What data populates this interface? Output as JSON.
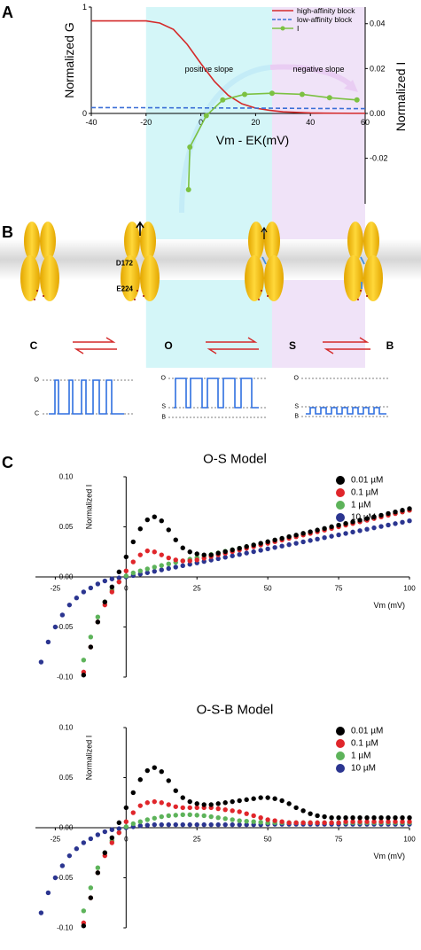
{
  "panel_labels": [
    "A",
    "B",
    "C"
  ],
  "panel_b": {
    "residues": [
      "D172",
      "E224"
    ],
    "states": [
      "C",
      "O",
      "S",
      "B"
    ],
    "traces": [
      {
        "levels": [
          "O",
          "C"
        ]
      },
      {
        "levels": [
          "O",
          "S",
          "B"
        ]
      },
      {
        "levels": [
          "O",
          "S",
          "B"
        ]
      }
    ]
  },
  "chart_data": [
    {
      "type": "line",
      "xlabel": "Vm - EK(mV)",
      "ylabel": "Normalized G",
      "y2label": "Normalized I",
      "xlim": [
        -40,
        60
      ],
      "xticks": [
        -40,
        -20,
        0,
        20,
        40,
        60
      ],
      "ylim": [
        -0.85,
        1
      ],
      "yticks": [
        0,
        1
      ],
      "y2lim": [
        -0.0403,
        0.0474
      ],
      "y2ticks": [
        0.04,
        0.02,
        {
          "value": 0,
          "label": "0.00"
        },
        -0.02
      ],
      "legend": "upper right",
      "regions": [
        {
          "label": "positive slope",
          "from": -20,
          "to": 26,
          "color": "#c9f4f6",
          "text_color": "#86c3e6"
        },
        {
          "label": "negative slope",
          "from": 26,
          "to": 60,
          "color": "#ecdcf6",
          "text_color": "#d39be6"
        }
      ],
      "series": [
        {
          "name": "high-affinity block",
          "color": "#d42a2a",
          "style": "solid",
          "x": [
            -40,
            -35,
            -30,
            -25,
            -20,
            -15,
            -10,
            -5,
            0,
            5,
            10,
            15,
            20,
            25,
            30,
            35,
            40,
            45,
            50,
            55,
            60
          ],
          "values": [
            0.87,
            0.87,
            0.87,
            0.87,
            0.87,
            0.85,
            0.79,
            0.65,
            0.47,
            0.3,
            0.17,
            0.09,
            0.05,
            0.03,
            0.015,
            0.01,
            0.005,
            0.003,
            0.002,
            0.001,
            0.001
          ]
        },
        {
          "name": "low-affinity block",
          "color": "#3b6fd6",
          "style": "dashed",
          "x": [
            -40,
            -20,
            0,
            20,
            40,
            60
          ],
          "values": [
            0.055,
            0.054,
            0.052,
            0.05,
            0.047,
            0.045
          ]
        },
        {
          "name": "I",
          "color": "#7cc142",
          "style": "solid",
          "marker": "circle",
          "axis": "y2",
          "x": [
            -4.5,
            -4,
            2,
            8,
            16,
            26,
            37,
            47,
            57
          ],
          "values": [
            -0.034,
            -0.015,
            -0.001,
            0.006,
            0.0085,
            0.009,
            0.0085,
            0.007,
            0.006
          ]
        }
      ]
    },
    {
      "type": "scatter",
      "title": "O-S Model",
      "xlabel": "Vm (mV)",
      "ylabel": "Normalized I",
      "xlim": [
        -32,
        100
      ],
      "xticks": [
        -25,
        0,
        25,
        50,
        75,
        100
      ],
      "ylim": [
        -0.1,
        0.1
      ],
      "yticks": [
        {
          "value": 0.1,
          "label": "0.10"
        },
        0.05,
        {
          "value": 0,
          "label": "0.00"
        },
        -0.05,
        {
          "value": -0.1,
          "label": "-0.10"
        }
      ],
      "legend": "upper right",
      "x": [
        -30,
        -27.5,
        -25,
        -22.5,
        -20,
        -17.5,
        -15,
        -12.5,
        -10,
        -7.5,
        -5,
        -2.5,
        0,
        2.5,
        5,
        7.5,
        10,
        12.5,
        15,
        17.5,
        20,
        22.5,
        25,
        27.5,
        30,
        32.5,
        35,
        37.5,
        40,
        42.5,
        45,
        47.5,
        50,
        52.5,
        55,
        57.5,
        60,
        62.5,
        65,
        67.5,
        70,
        72.5,
        75,
        77.5,
        80,
        82.5,
        85,
        87.5,
        90,
        92.5,
        95,
        97.5,
        100
      ],
      "series": [
        {
          "name": "0.01 µM",
          "color": "#000000",
          "values": [
            null,
            null,
            null,
            null,
            null,
            null,
            -0.098,
            -0.07,
            -0.045,
            -0.025,
            -0.01,
            0.005,
            0.02,
            0.035,
            0.048,
            0.057,
            0.06,
            0.056,
            0.047,
            0.037,
            0.029,
            0.025,
            0.023,
            0.022,
            0.022,
            0.0237,
            0.0253,
            0.027,
            0.0286,
            0.0303,
            0.0319,
            0.0336,
            0.0352,
            0.0369,
            0.0385,
            0.0402,
            0.0418,
            0.0435,
            0.0451,
            0.0468,
            0.0484,
            0.0501,
            0.0517,
            0.0534,
            0.055,
            0.0567,
            0.0583,
            0.06,
            0.0616,
            0.0633,
            0.0649,
            0.0666,
            0.0682
          ]
        },
        {
          "name": "0.1 µM",
          "color": "#e0262b",
          "values": [
            null,
            null,
            null,
            null,
            null,
            null,
            -0.095,
            -0.07,
            -0.045,
            -0.028,
            -0.015,
            -0.005,
            0.006,
            0.015,
            0.022,
            0.026,
            0.025,
            0.022,
            0.019,
            0.017,
            0.016,
            0.016,
            0.017,
            0.0187,
            0.0203,
            0.022,
            0.0236,
            0.0253,
            0.0269,
            0.0286,
            0.0302,
            0.0319,
            0.0335,
            0.0352,
            0.0368,
            0.0385,
            0.0401,
            0.0418,
            0.0434,
            0.0451,
            0.0467,
            0.0484,
            0.05,
            0.0517,
            0.0533,
            0.055,
            0.0566,
            0.0583,
            0.0599,
            0.0616,
            0.0632,
            0.0649,
            0.0665
          ]
        },
        {
          "name": "1 µM",
          "color": "#5db35a",
          "values": [
            null,
            null,
            null,
            null,
            null,
            null,
            -0.083,
            -0.06,
            -0.04,
            -0.025,
            -0.013,
            -0.005,
            0.001,
            0.004,
            0.006,
            0.008,
            0.0098,
            0.0114,
            0.013,
            0.0145,
            0.0161,
            0.0177,
            0.0193,
            0.0208,
            0.0224,
            0.024,
            0.0256,
            0.0271,
            0.0287,
            0.0303,
            0.0319,
            0.0334,
            0.035,
            0.0366,
            0.0382,
            0.0397,
            0.0413,
            0.0429,
            0.0445,
            0.046,
            0.0476,
            0.0492,
            0.0508,
            0.0523,
            0.0539,
            0.0555,
            0.0571,
            0.0586,
            0.0602,
            0.0618,
            0.0634,
            0.0649,
            0.0665
          ]
        },
        {
          "name": "10 µM",
          "color": "#2b3590",
          "values": [
            -0.085,
            -0.065,
            -0.05,
            -0.038,
            -0.028,
            -0.021,
            -0.015,
            -0.011,
            -0.007,
            -0.004,
            -0.002,
            -0.001,
            0,
            0.0014,
            0.0028,
            0.0042,
            0.0056,
            0.007,
            0.0084,
            0.0098,
            0.0112,
            0.0126,
            0.014,
            0.0154,
            0.0168,
            0.0182,
            0.0196,
            0.021,
            0.0224,
            0.0238,
            0.0252,
            0.0266,
            0.028,
            0.0294,
            0.0308,
            0.0322,
            0.0336,
            0.035,
            0.0364,
            0.0378,
            0.0392,
            0.0406,
            0.042,
            0.0434,
            0.0448,
            0.0462,
            0.0476,
            0.049,
            0.0504,
            0.0518,
            0.0532,
            0.0546,
            0.056
          ]
        }
      ]
    },
    {
      "type": "scatter",
      "title": "O-S-B Model",
      "xlabel": "Vm (mV)",
      "ylabel": "Normalized I",
      "xlim": [
        -32,
        100
      ],
      "xticks": [
        -25,
        0,
        25,
        50,
        75,
        100
      ],
      "ylim": [
        -0.1,
        0.1
      ],
      "yticks": [
        {
          "value": 0.1,
          "label": "0.10"
        },
        0.05,
        {
          "value": 0,
          "label": "0.00"
        },
        -0.05,
        {
          "value": -0.1,
          "label": "-0.10"
        }
      ],
      "legend": "upper right",
      "x": [
        -30,
        -27.5,
        -25,
        -22.5,
        -20,
        -17.5,
        -15,
        -12.5,
        -10,
        -7.5,
        -5,
        -2.5,
        0,
        2.5,
        5,
        7.5,
        10,
        12.5,
        15,
        17.5,
        20,
        22.5,
        25,
        27.5,
        30,
        32.5,
        35,
        37.5,
        40,
        42.5,
        45,
        47.5,
        50,
        52.5,
        55,
        57.5,
        60,
        62.5,
        65,
        67.5,
        70,
        72.5,
        75,
        77.5,
        80,
        82.5,
        85,
        87.5,
        90,
        92.5,
        95,
        97.5,
        100
      ],
      "series": [
        {
          "name": "0.01 µM",
          "color": "#000000",
          "values": [
            null,
            null,
            null,
            null,
            null,
            null,
            -0.098,
            -0.07,
            -0.045,
            -0.025,
            -0.01,
            0.005,
            0.02,
            0.035,
            0.048,
            0.057,
            0.06,
            0.056,
            0.047,
            0.037,
            0.03,
            0.026,
            0.024,
            0.023,
            0.023,
            0.024,
            0.025,
            0.026,
            0.027,
            0.028,
            0.029,
            0.03,
            0.03,
            0.029,
            0.027,
            0.024,
            0.02,
            0.017,
            0.014,
            0.012,
            0.011,
            0.01,
            0.01,
            0.01,
            0.01,
            0.01,
            0.01,
            0.01,
            0.01,
            0.01,
            0.01,
            0.01,
            0.01
          ]
        },
        {
          "name": "0.1 µM",
          "color": "#e0262b",
          "values": [
            null,
            null,
            null,
            null,
            null,
            null,
            -0.095,
            -0.07,
            -0.045,
            -0.028,
            -0.015,
            -0.005,
            0.006,
            0.015,
            0.022,
            0.025,
            0.026,
            0.025,
            0.023,
            0.021,
            0.02,
            0.02,
            0.02,
            0.02,
            0.02,
            0.019,
            0.018,
            0.017,
            0.016,
            0.014,
            0.012,
            0.01,
            0.008,
            0.007,
            0.006,
            0.005,
            0.005,
            0.005,
            0.005,
            0.005,
            0.005,
            0.005,
            0.005,
            0.006,
            0.006,
            0.006,
            0.006,
            0.006,
            0.006,
            0.006,
            0.006,
            0.006,
            0.006
          ]
        },
        {
          "name": "1 µM",
          "color": "#5db35a",
          "values": [
            null,
            null,
            null,
            null,
            null,
            null,
            -0.083,
            -0.06,
            -0.04,
            -0.025,
            -0.013,
            -0.005,
            0.001,
            0.004,
            0.006,
            0.008,
            0.0095,
            0.011,
            0.012,
            0.0125,
            0.013,
            0.013,
            0.0125,
            0.012,
            0.011,
            0.01,
            0.009,
            0.008,
            0.007,
            0.0065,
            0.006,
            0.0055,
            0.005,
            0.005,
            0.005,
            0.005,
            0.005,
            0.005,
            0.005,
            0.005,
            0.005,
            0.005,
            0.005,
            0.005,
            0.005,
            0.005,
            0.005,
            0.005,
            0.005,
            0.005,
            0.005,
            0.005,
            0.005
          ]
        },
        {
          "name": "10 µM",
          "color": "#2b3590",
          "values": [
            -0.085,
            -0.065,
            -0.05,
            -0.038,
            -0.028,
            -0.021,
            -0.015,
            -0.011,
            -0.007,
            -0.004,
            -0.002,
            -0.001,
            0,
            0.001,
            0.002,
            0.0025,
            0.003,
            0.003,
            0.003,
            0.003,
            0.003,
            0.003,
            0.003,
            0.003,
            0.003,
            0.003,
            0.003,
            0.003,
            0.003,
            0.003,
            0.003,
            0.003,
            0.0035,
            0.0035,
            0.0035,
            0.0035,
            0.0035,
            0.0035,
            0.0035,
            0.0035,
            0.0035,
            0.0035,
            0.0035,
            0.0035,
            0.0035,
            0.0035,
            0.0035,
            0.0035,
            0.0035,
            0.0035,
            0.0035,
            0.0035,
            0.0035
          ]
        }
      ]
    }
  ]
}
